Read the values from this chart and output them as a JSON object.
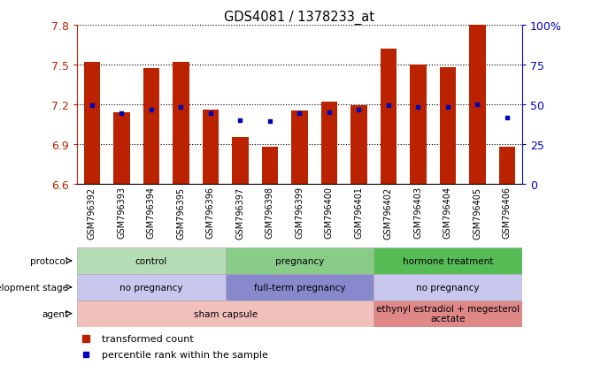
{
  "title": "GDS4081 / 1378233_at",
  "samples": [
    "GSM796392",
    "GSM796393",
    "GSM796394",
    "GSM796395",
    "GSM796396",
    "GSM796397",
    "GSM796398",
    "GSM796399",
    "GSM796400",
    "GSM796401",
    "GSM796402",
    "GSM796403",
    "GSM796404",
    "GSM796405",
    "GSM796406"
  ],
  "bar_values": [
    7.52,
    7.14,
    7.47,
    7.52,
    7.16,
    6.95,
    6.88,
    7.15,
    7.22,
    7.19,
    7.62,
    7.5,
    7.48,
    7.8,
    6.88
  ],
  "dot_values": [
    7.19,
    7.13,
    7.16,
    7.18,
    7.13,
    7.08,
    7.07,
    7.13,
    7.14,
    7.16,
    7.19,
    7.18,
    7.18,
    7.2,
    7.1
  ],
  "ylim": [
    6.6,
    7.8
  ],
  "y_ticks_left": [
    6.6,
    6.9,
    7.2,
    7.5,
    7.8
  ],
  "right_ticks_pct": [
    0,
    25,
    50,
    75,
    100
  ],
  "right_ticks_labels": [
    "0",
    "25",
    "50",
    "75",
    "100%"
  ],
  "bar_color": "#bb2200",
  "dot_color": "#0000bb",
  "bg_color": "#ffffff",
  "protocol_groups": [
    {
      "label": "control",
      "start": 0,
      "end": 4,
      "color": "#b5ddb5"
    },
    {
      "label": "pregnancy",
      "start": 5,
      "end": 9,
      "color": "#88cc88"
    },
    {
      "label": "hormone treatment",
      "start": 10,
      "end": 14,
      "color": "#55bb55"
    }
  ],
  "dev_stage_groups": [
    {
      "label": "no pregnancy",
      "start": 0,
      "end": 4,
      "color": "#c8c8ee"
    },
    {
      "label": "full-term pregnancy",
      "start": 5,
      "end": 9,
      "color": "#8888cc"
    },
    {
      "label": "no pregnancy",
      "start": 10,
      "end": 14,
      "color": "#c8c8ee"
    }
  ],
  "agent_groups": [
    {
      "label": "sham capsule",
      "start": 0,
      "end": 9,
      "color": "#f2c0bc"
    },
    {
      "label": "ethynyl estradiol + megesterol\nacetate",
      "start": 10,
      "end": 14,
      "color": "#e08888"
    }
  ],
  "row_labels": [
    "protocol",
    "development stage",
    "agent"
  ],
  "legend_items": [
    "transformed count",
    "percentile rank within the sample"
  ]
}
